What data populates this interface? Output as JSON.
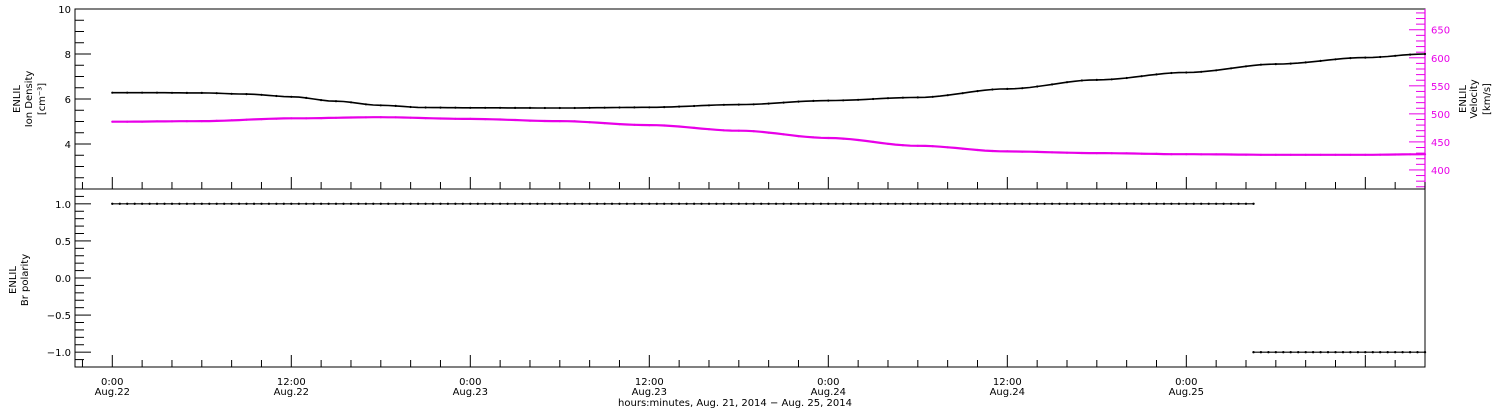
{
  "chart_data": [
    {
      "type": "line",
      "panel": "top",
      "ylabel_lines": [
        "ENLIL",
        "Ion Density",
        "[cm⁻³]"
      ],
      "ylim": [
        2,
        10
      ],
      "yticks": [
        4,
        6,
        8,
        10
      ],
      "y2label_lines": [
        "ENLIL",
        "Velocity",
        "[km/s]"
      ],
      "y2lim": [
        366,
        687
      ],
      "y2ticks": [
        400,
        450,
        500,
        550,
        600,
        650
      ],
      "y2_color": "#e800e8",
      "series": [
        {
          "axis": "left",
          "color": "#000000",
          "points": [
            [
              0,
              6.28
            ],
            [
              3,
              6.28
            ],
            [
              6,
              6.27
            ],
            [
              9,
              6.22
            ],
            [
              12,
              6.1
            ],
            [
              15,
              5.9
            ],
            [
              18,
              5.72
            ],
            [
              21,
              5.62
            ],
            [
              24,
              5.61
            ],
            [
              30,
              5.6
            ],
            [
              36,
              5.63
            ],
            [
              42,
              5.75
            ],
            [
              48,
              5.93
            ],
            [
              54,
              6.07
            ],
            [
              60,
              6.45
            ],
            [
              66,
              6.85
            ],
            [
              72,
              7.18
            ],
            [
              78,
              7.55
            ],
            [
              84,
              7.84
            ],
            [
              88,
              8.0
            ]
          ]
        },
        {
          "axis": "right",
          "color": "#e800e8",
          "points": [
            [
              0,
              486
            ],
            [
              6,
              487
            ],
            [
              12,
              492
            ],
            [
              18,
              494
            ],
            [
              24,
              491
            ],
            [
              30,
              487
            ],
            [
              36,
              480
            ],
            [
              42,
              470
            ],
            [
              48,
              457
            ],
            [
              54,
              443
            ],
            [
              60,
              433
            ],
            [
              66,
              430
            ],
            [
              72,
              428
            ],
            [
              78,
              427
            ],
            [
              84,
              427
            ],
            [
              88,
              428
            ]
          ]
        }
      ]
    },
    {
      "type": "line",
      "panel": "bottom",
      "ylabel_lines": [
        "ENLIL",
        "Br polarity"
      ],
      "ylim": [
        -1.2,
        1.2
      ],
      "yticks": [
        -1.0,
        -0.5,
        0.0,
        0.5,
        1.0
      ],
      "ytick_labels": [
        "−1.0",
        "−0.5",
        "0.0",
        "0.5",
        "1.0"
      ],
      "series": [
        {
          "color": "#000000",
          "points": [
            [
              0,
              1.0
            ],
            [
              76.5,
              1.0
            ]
          ]
        },
        {
          "color": "#000000",
          "points": [
            [
              76.5,
              -1.0
            ],
            [
              88,
              -1.0
            ]
          ]
        }
      ]
    }
  ],
  "x_axis": {
    "range_hours_from_aug22_0000": [
      -2.5,
      88
    ],
    "major_ticks": [
      {
        "hours": 0,
        "time": "0:00",
        "date": "Aug.22"
      },
      {
        "hours": 12,
        "time": "12:00",
        "date": "Aug.22"
      },
      {
        "hours": 24,
        "time": "0:00",
        "date": "Aug.23"
      },
      {
        "hours": 36,
        "time": "12:00",
        "date": "Aug.23"
      },
      {
        "hours": 48,
        "time": "0:00",
        "date": "Aug.24"
      },
      {
        "hours": 60,
        "time": "12:00",
        "date": "Aug.24"
      },
      {
        "hours": 72,
        "time": "0:00",
        "date": "Aug.25"
      }
    ],
    "label": "hours:minutes, Aug. 21, 2014 − Aug. 25, 2014"
  }
}
